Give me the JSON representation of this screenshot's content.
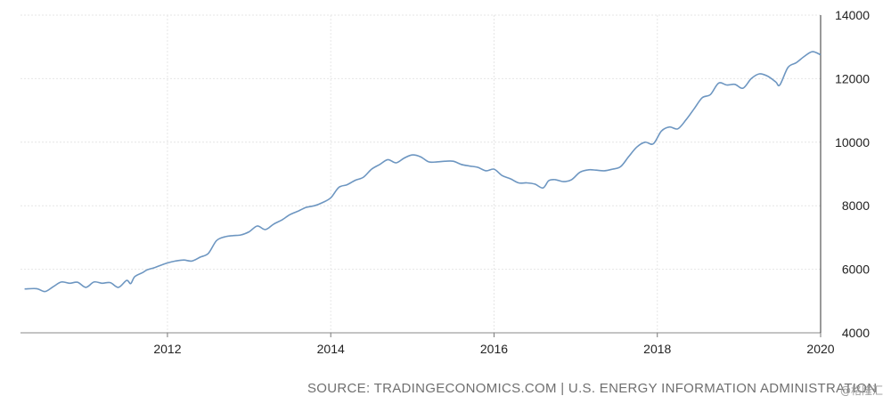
{
  "chart_data": {
    "type": "line",
    "title": "",
    "xlabel": "",
    "ylabel": "",
    "xlim": [
      2010.2,
      2020.0
    ],
    "ylim": [
      4000,
      14000
    ],
    "x_ticks": [
      "2012",
      "2014",
      "2016",
      "2018",
      "2020"
    ],
    "y_ticks": [
      "4000",
      "6000",
      "8000",
      "10000",
      "12000",
      "14000"
    ],
    "grid": true,
    "legend": "none",
    "series": [
      {
        "color": "#6d96c1",
        "x": [
          2010.25,
          2010.4,
          2010.5,
          2010.6,
          2010.7,
          2010.8,
          2010.9,
          2011.0,
          2011.1,
          2011.2,
          2011.3,
          2011.4,
          2011.5,
          2011.55,
          2011.6,
          2011.7,
          2011.75,
          2011.85,
          2012.0,
          2012.1,
          2012.2,
          2012.3,
          2012.4,
          2012.5,
          2012.6,
          2012.7,
          2012.8,
          2012.9,
          2013.0,
          2013.1,
          2013.2,
          2013.3,
          2013.4,
          2013.5,
          2013.6,
          2013.7,
          2013.8,
          2013.9,
          2014.0,
          2014.1,
          2014.2,
          2014.3,
          2014.4,
          2014.5,
          2014.6,
          2014.7,
          2014.8,
          2014.9,
          2015.0,
          2015.1,
          2015.2,
          2015.3,
          2015.4,
          2015.5,
          2015.6,
          2015.7,
          2015.8,
          2015.9,
          2016.0,
          2016.1,
          2016.2,
          2016.3,
          2016.4,
          2016.5,
          2016.6,
          2016.67,
          2016.75,
          2016.85,
          2016.95,
          2017.05,
          2017.15,
          2017.25,
          2017.35,
          2017.45,
          2017.55,
          2017.65,
          2017.75,
          2017.85,
          2017.95,
          2018.05,
          2018.15,
          2018.25,
          2018.35,
          2018.45,
          2018.55,
          2018.65,
          2018.75,
          2018.85,
          2018.95,
          2019.05,
          2019.15,
          2019.25,
          2019.35,
          2019.45,
          2019.5,
          2019.6,
          2019.7,
          2019.8,
          2019.9,
          2020.0
        ],
        "values": [
          5380,
          5390,
          5300,
          5450,
          5600,
          5560,
          5590,
          5430,
          5600,
          5560,
          5580,
          5430,
          5650,
          5550,
          5770,
          5900,
          5980,
          6060,
          6200,
          6260,
          6290,
          6260,
          6380,
          6500,
          6900,
          7020,
          7060,
          7080,
          7180,
          7360,
          7250,
          7420,
          7550,
          7720,
          7830,
          7950,
          8000,
          8100,
          8250,
          8580,
          8660,
          8800,
          8900,
          9150,
          9300,
          9450,
          9350,
          9500,
          9600,
          9540,
          9380,
          9380,
          9400,
          9400,
          9300,
          9250,
          9210,
          9100,
          9150,
          8950,
          8850,
          8720,
          8720,
          8680,
          8560,
          8790,
          8820,
          8760,
          8820,
          9050,
          9130,
          9120,
          9100,
          9150,
          9230,
          9550,
          9850,
          10000,
          9950,
          10350,
          10480,
          10420,
          10700,
          11050,
          11400,
          11500,
          11860,
          11800,
          11820,
          11700,
          12000,
          12150,
          12080,
          11900,
          11800,
          12350,
          12500,
          12700,
          12850,
          12750
        ]
      }
    ]
  },
  "footer": {
    "source": "SOURCE: TRADINGECONOMICS.COM | U.S. ENERGY INFORMATION ADMINISTRATION",
    "watermark": "@格隆汇"
  }
}
